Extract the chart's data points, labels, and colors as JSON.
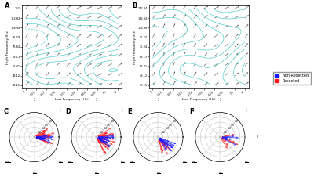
{
  "panel_labels": [
    "A",
    "B",
    "C",
    "D",
    "E",
    "F"
  ],
  "quiver_A": {
    "xlabel": "Low Frequency (Hz)",
    "ylabel": "High Frequency (Hz)",
    "x_tick_labels": [
      "1",
      "1.29",
      "1.67",
      "2.24",
      "2.78",
      "3.39",
      "4.44",
      "5.99",
      "7.7",
      "10"
    ],
    "y_tick_labels": [
      "30.15",
      "43.12",
      "52.41",
      "63.13",
      "76.84",
      "91.79",
      "108.98",
      "132.84",
      "160"
    ]
  },
  "quiver_B": {
    "xlabel": "Low Frequency (Hz)",
    "ylabel": "High Frequency (Hz)",
    "x_tick_labels": [
      "1",
      "1.29",
      "1.67",
      "2.24",
      "2.78",
      "3.39",
      "4.44",
      "5.99",
      "7.7",
      "10"
    ],
    "y_tick_labels": [
      "30.15",
      "43.12",
      "52.41",
      "63.13",
      "76.84",
      "91.74",
      "108.98",
      "132.84",
      "172.84"
    ]
  },
  "legend": {
    "non_resected_color": "#1a1aff",
    "resected_color": "#ff1a1a",
    "non_resected_label": "Non-Resected",
    "resected_label": "Resected"
  },
  "polar_C": {
    "red_base_deg": 5,
    "red_spread_deg": 30,
    "red_n": 22,
    "blue_base_deg": -8,
    "blue_spread_deg": 18,
    "blue_n": 18
  },
  "polar_D": {
    "red_base_deg": -15,
    "red_spread_deg": 50,
    "red_n": 24,
    "blue_base_deg": -20,
    "blue_spread_deg": 30,
    "blue_n": 20
  },
  "polar_E": {
    "red_base_deg": -60,
    "red_spread_deg": 25,
    "red_n": 16,
    "blue_base_deg": -40,
    "blue_spread_deg": 20,
    "blue_n": 12
  },
  "polar_F": {
    "red_base_deg": -30,
    "red_spread_deg": 60,
    "red_n": 8,
    "blue_base_deg": 5,
    "blue_spread_deg": 35,
    "blue_n": 7
  }
}
